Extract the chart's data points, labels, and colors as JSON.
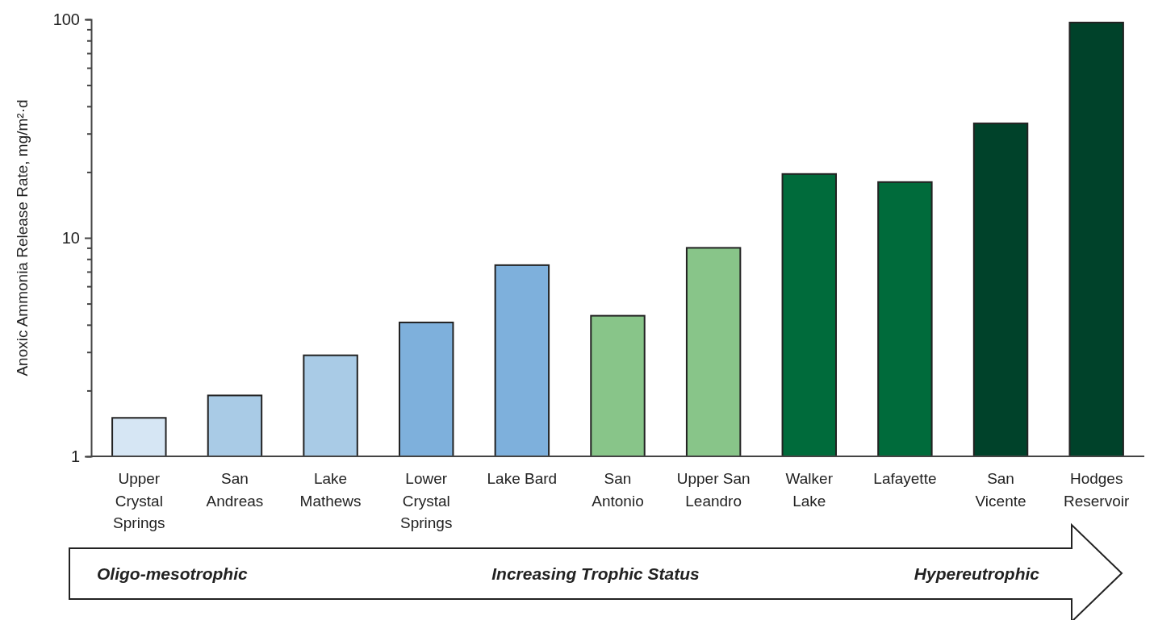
{
  "chart_data": {
    "type": "bar",
    "ylabel": "Anoxic Ammonia Release Rate, mg/m²·d",
    "categories": [
      "Upper Crystal Springs",
      "San Andreas",
      "Lake Mathews",
      "Lower Crystal Springs",
      "Lake Bard",
      "San Antonio",
      "Upper San Leandro",
      "Walker Lake",
      "Lafayette",
      "San Vicente",
      "Hodges Reservoir"
    ],
    "values": [
      1.5,
      1.9,
      2.9,
      4.1,
      7.5,
      4.4,
      9.0,
      19.6,
      18.0,
      33.4,
      96.7
    ],
    "colors": [
      "#d6e6f4",
      "#a9cbe6",
      "#a9cbe6",
      "#7eb0dc",
      "#7eb0dc",
      "#88c589",
      "#88c589",
      "#006b3b",
      "#006b3b",
      "#00422a",
      "#00422a"
    ],
    "log": true,
    "ylim": [
      1,
      100
    ],
    "yticks": [
      1,
      {
        "value": 2,
        "label": null
      },
      {
        "value": 3,
        "label": null
      },
      {
        "value": 4,
        "label": null
      },
      {
        "value": 5,
        "label": null
      },
      {
        "value": 6,
        "label": null
      },
      {
        "value": 7,
        "label": null
      },
      {
        "value": 8,
        "label": null
      },
      {
        "value": 9,
        "label": null
      },
      10,
      {
        "value": 20,
        "label": null
      },
      {
        "value": 30,
        "label": null
      },
      {
        "value": 40,
        "label": null
      },
      {
        "value": 50,
        "label": null
      },
      {
        "value": 60,
        "label": null
      },
      {
        "value": 70,
        "label": null
      },
      {
        "value": 80,
        "label": null
      },
      {
        "value": 90,
        "label": null
      },
      100
    ],
    "grid": false,
    "annotations": [
      "Oligo-mesotrophic",
      "Increasing Trophic Status",
      "Hypereutrophic"
    ]
  }
}
